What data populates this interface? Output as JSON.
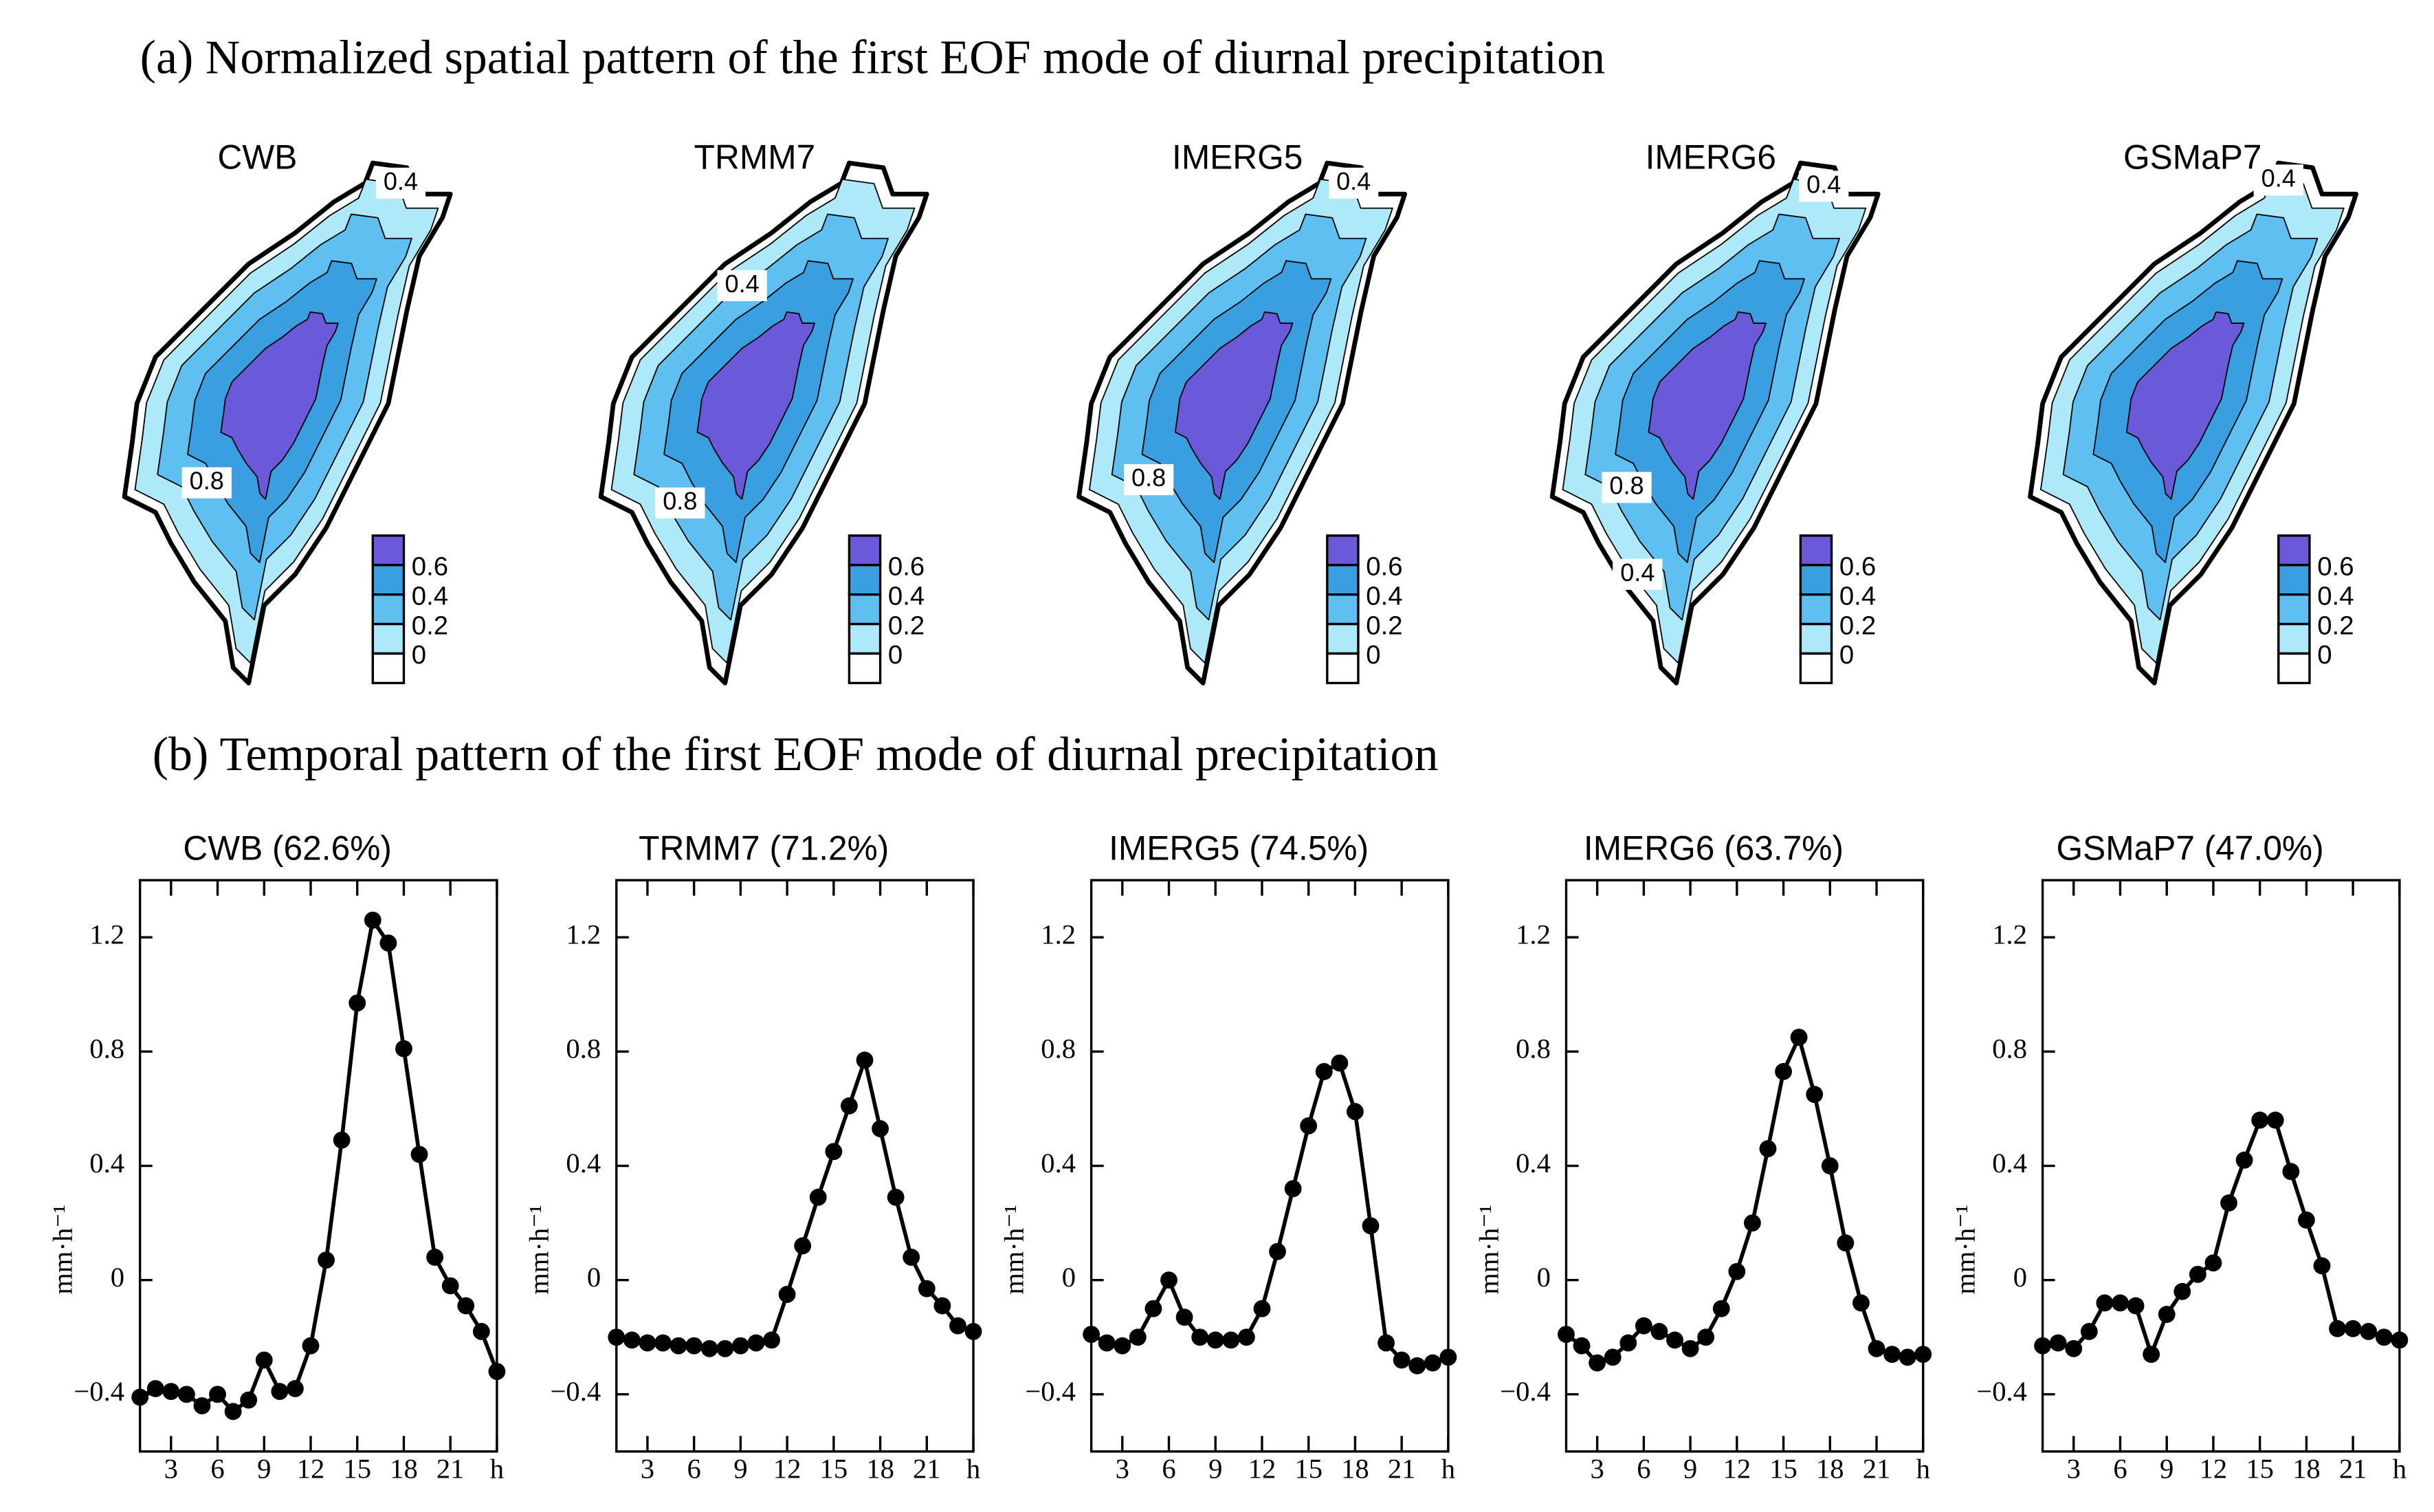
{
  "panel_a": {
    "title": "(a) Normalized spatial pattern of the first EOF mode of diurnal precipitation",
    "maps": [
      {
        "name": "CWB",
        "contour_labels": [
          "0.4",
          "0.8"
        ]
      },
      {
        "name": "TRMM7",
        "contour_labels": [
          "0.4",
          "0.8"
        ]
      },
      {
        "name": "IMERG5",
        "contour_labels": [
          "0.4",
          "0.8"
        ]
      },
      {
        "name": "IMERG6",
        "contour_labels": [
          "0.4",
          "0.8",
          "0.4"
        ]
      },
      {
        "name": "GSMaP7",
        "contour_labels": [
          "0.4"
        ]
      }
    ],
    "legend_labels": [
      0.6,
      0.4,
      0.2,
      0
    ],
    "legend_colors": [
      "#6a5ad9",
      "#3a9fe0",
      "#5ebff0",
      "#aee9f9",
      "#ffffff"
    ]
  },
  "panel_b": {
    "title": "(b) Temporal pattern of the first EOF mode of diurnal precipitation"
  },
  "chart_data": [
    {
      "type": "line",
      "title": "CWB (62.6%)",
      "y_label": "mm·h⁻¹",
      "x": [
        1,
        2,
        3,
        4,
        5,
        6,
        7,
        8,
        9,
        10,
        11,
        12,
        13,
        14,
        15,
        16,
        17,
        18,
        19,
        20,
        21,
        22,
        23,
        24
      ],
      "series": [
        {
          "name": "CWB",
          "color": "#000000",
          "values": [
            -0.41,
            -0.38,
            -0.39,
            -0.4,
            -0.44,
            -0.4,
            -0.46,
            -0.42,
            -0.28,
            -0.39,
            -0.38,
            -0.23,
            0.07,
            0.49,
            0.97,
            1.26,
            1.18,
            0.81,
            0.44,
            0.08,
            -0.02,
            -0.09,
            -0.18,
            -0.32
          ]
        }
      ],
      "xlim": [
        1,
        24
      ],
      "xticks": [
        3,
        6,
        9,
        12,
        15,
        18,
        21,
        {
          "value": 24,
          "label": "h"
        }
      ],
      "ylim": [
        -0.6,
        1.4
      ],
      "yticks": [
        {
          "value": -0.4,
          "label": "−0.4"
        },
        0,
        0.4,
        0.8,
        1.2
      ]
    },
    {
      "type": "line",
      "title": "TRMM7 (71.2%)",
      "y_label": "mm·h⁻¹",
      "x": [
        1,
        2,
        3,
        4,
        5,
        6,
        7,
        8,
        9,
        10,
        11,
        12,
        13,
        14,
        15,
        16,
        17,
        18,
        19,
        20,
        21,
        22,
        23,
        24
      ],
      "series": [
        {
          "name": "TRMM7",
          "color": "#000000",
          "values": [
            -0.2,
            -0.21,
            -0.22,
            -0.22,
            -0.23,
            -0.23,
            -0.24,
            -0.24,
            -0.23,
            -0.22,
            -0.21,
            -0.05,
            0.12,
            0.29,
            0.45,
            0.61,
            0.77,
            0.53,
            0.29,
            0.08,
            -0.03,
            -0.09,
            -0.16,
            -0.18
          ]
        }
      ],
      "xlim": [
        1,
        24
      ],
      "xticks": [
        3,
        6,
        9,
        12,
        15,
        18,
        21,
        {
          "value": 24,
          "label": "h"
        }
      ],
      "ylim": [
        -0.6,
        1.4
      ],
      "yticks": [
        {
          "value": -0.4,
          "label": "−0.4"
        },
        0,
        0.4,
        0.8,
        1.2
      ]
    },
    {
      "type": "line",
      "title": "IMERG5 (74.5%)",
      "y_label": "mm·h⁻¹",
      "x": [
        1,
        2,
        3,
        4,
        5,
        6,
        7,
        8,
        9,
        10,
        11,
        12,
        13,
        14,
        15,
        16,
        17,
        18,
        19,
        20,
        21,
        22,
        23,
        24
      ],
      "series": [
        {
          "name": "IMERG5",
          "color": "#000000",
          "values": [
            -0.19,
            -0.22,
            -0.23,
            -0.2,
            -0.1,
            0.0,
            -0.13,
            -0.2,
            -0.21,
            -0.21,
            -0.2,
            -0.1,
            0.1,
            0.32,
            0.54,
            0.73,
            0.76,
            0.59,
            0.19,
            -0.22,
            -0.28,
            -0.3,
            -0.29,
            -0.27
          ]
        }
      ],
      "xlim": [
        1,
        24
      ],
      "xticks": [
        3,
        6,
        9,
        12,
        15,
        18,
        21,
        {
          "value": 24,
          "label": "h"
        }
      ],
      "ylim": [
        -0.6,
        1.4
      ],
      "yticks": [
        {
          "value": -0.4,
          "label": "−0.4"
        },
        0,
        0.4,
        0.8,
        1.2
      ]
    },
    {
      "type": "line",
      "title": "IMERG6 (63.7%)",
      "y_label": "mm·h⁻¹",
      "x": [
        1,
        2,
        3,
        4,
        5,
        6,
        7,
        8,
        9,
        10,
        11,
        12,
        13,
        14,
        15,
        16,
        17,
        18,
        19,
        20,
        21,
        22,
        23,
        24
      ],
      "series": [
        {
          "name": "IMERG6",
          "color": "#000000",
          "values": [
            -0.19,
            -0.23,
            -0.29,
            -0.27,
            -0.22,
            -0.16,
            -0.18,
            -0.21,
            -0.24,
            -0.2,
            -0.1,
            0.03,
            0.2,
            0.46,
            0.73,
            0.85,
            0.65,
            0.4,
            0.13,
            -0.08,
            -0.24,
            -0.26,
            -0.27,
            -0.26
          ]
        }
      ],
      "xlim": [
        1,
        24
      ],
      "xticks": [
        3,
        6,
        9,
        12,
        15,
        18,
        21,
        {
          "value": 24,
          "label": "h"
        }
      ],
      "ylim": [
        -0.6,
        1.4
      ],
      "yticks": [
        {
          "value": -0.4,
          "label": "−0.4"
        },
        0,
        0.4,
        0.8,
        1.2
      ]
    },
    {
      "type": "line",
      "title": "GSMaP7 (47.0%)",
      "y_label": "mm·h⁻¹",
      "x": [
        1,
        2,
        3,
        4,
        5,
        6,
        7,
        8,
        9,
        10,
        11,
        12,
        13,
        14,
        15,
        16,
        17,
        18,
        19,
        20,
        21,
        22,
        23,
        24
      ],
      "series": [
        {
          "name": "GSMaP7",
          "color": "#000000",
          "values": [
            -0.23,
            -0.22,
            -0.24,
            -0.18,
            -0.08,
            -0.08,
            -0.09,
            -0.26,
            -0.12,
            -0.04,
            0.02,
            0.06,
            0.27,
            0.42,
            0.56,
            0.56,
            0.38,
            0.21,
            0.05,
            -0.17,
            -0.17,
            -0.18,
            -0.2,
            -0.21
          ]
        }
      ],
      "xlim": [
        1,
        24
      ],
      "xticks": [
        3,
        6,
        9,
        12,
        15,
        18,
        21,
        {
          "value": 24,
          "label": "h"
        }
      ],
      "ylim": [
        -0.6,
        1.4
      ],
      "yticks": [
        {
          "value": -0.4,
          "label": "−0.4"
        },
        0,
        0.4,
        0.8,
        1.2
      ]
    }
  ]
}
